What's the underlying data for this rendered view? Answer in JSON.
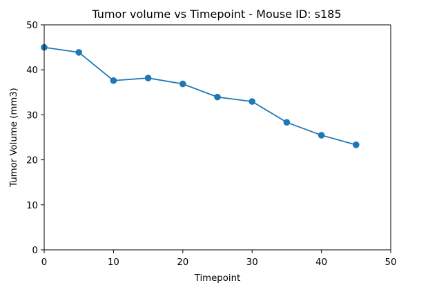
{
  "chart_data": {
    "type": "line",
    "title": "Tumor volume vs Timepoint - Mouse ID: s185",
    "xlabel": "Timepoint",
    "ylabel": "Tumor Volume (mm3)",
    "xlim": [
      0,
      50
    ],
    "ylim": [
      0,
      50
    ],
    "xticks": [
      "0",
      "10",
      "20",
      "30",
      "40",
      "50"
    ],
    "yticks": [
      "0",
      "10",
      "20",
      "30",
      "40",
      "50"
    ],
    "grid": false,
    "legend": "none",
    "series": [
      {
        "color": "#1f77b4",
        "marker": "circle",
        "x": [
          0,
          5,
          10,
          15,
          20,
          25,
          30,
          35,
          40,
          45
        ],
        "y": [
          45.0,
          43.88,
          37.61,
          38.18,
          36.87,
          33.95,
          32.96,
          28.33,
          25.47,
          23.34
        ]
      }
    ]
  }
}
